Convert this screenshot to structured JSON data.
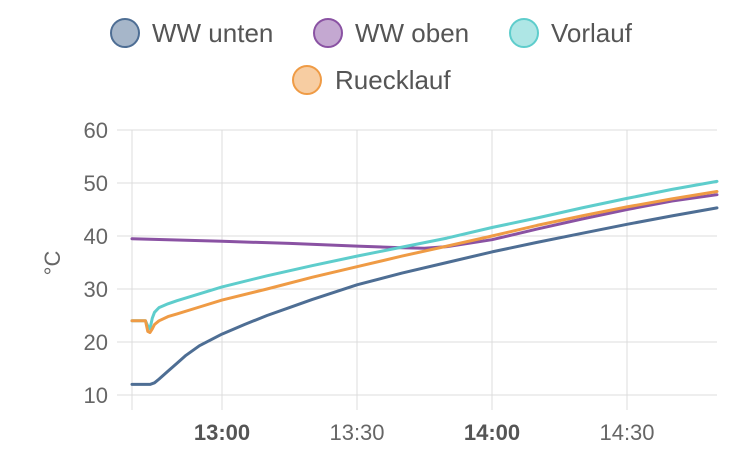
{
  "chart_data": {
    "type": "line",
    "ylabel": "°C",
    "ylim": [
      10,
      60
    ],
    "yticks": [
      10,
      20,
      30,
      40,
      50,
      60
    ],
    "xticks": [
      {
        "t": "13:00",
        "label": "13:00",
        "bold": true
      },
      {
        "t": "13:30",
        "label": "13:30",
        "bold": false
      },
      {
        "t": "14:00",
        "label": "14:00",
        "bold": true
      },
      {
        "t": "14:30",
        "label": "14:30",
        "bold": false
      }
    ],
    "xlim": [
      "12:40",
      "14:50"
    ],
    "grid": true,
    "legend_position": "top",
    "series": [
      {
        "name": "WW unten",
        "color": "#4e6e94",
        "points": [
          [
            "12:40",
            12.0
          ],
          [
            "12:44",
            12.0
          ],
          [
            "12:45",
            12.3
          ],
          [
            "12:46",
            13.0
          ],
          [
            "12:48",
            14.5
          ],
          [
            "12:50",
            16.0
          ],
          [
            "12:52",
            17.5
          ],
          [
            "12:55",
            19.3
          ],
          [
            "13:00",
            21.5
          ],
          [
            "13:05",
            23.3
          ],
          [
            "13:10",
            25.0
          ],
          [
            "13:15",
            26.5
          ],
          [
            "13:20",
            28.0
          ],
          [
            "13:30",
            30.8
          ],
          [
            "13:40",
            33.0
          ],
          [
            "13:50",
            35.0
          ],
          [
            "14:00",
            37.0
          ],
          [
            "14:10",
            38.8
          ],
          [
            "14:20",
            40.5
          ],
          [
            "14:30",
            42.2
          ],
          [
            "14:40",
            43.8
          ],
          [
            "14:50",
            45.3
          ]
        ]
      },
      {
        "name": "WW oben",
        "color": "#8a52a3",
        "points": [
          [
            "12:40",
            39.5
          ],
          [
            "13:00",
            39.0
          ],
          [
            "13:15",
            38.6
          ],
          [
            "13:30",
            38.1
          ],
          [
            "13:40",
            37.8
          ],
          [
            "13:45",
            37.7
          ],
          [
            "13:50",
            38.0
          ],
          [
            "14:00",
            39.3
          ],
          [
            "14:10",
            41.3
          ],
          [
            "14:20",
            43.2
          ],
          [
            "14:30",
            45.0
          ],
          [
            "14:40",
            46.6
          ],
          [
            "14:50",
            47.8
          ]
        ]
      },
      {
        "name": "Vorlauf",
        "color": "#5ecdcc",
        "points": [
          [
            "12:40",
            24.0
          ],
          [
            "12:43",
            24.0
          ],
          [
            "12:43.5",
            23.0
          ],
          [
            "12:44",
            22.5
          ],
          [
            "12:44.5",
            24.5
          ],
          [
            "12:45",
            25.6
          ],
          [
            "12:46",
            26.5
          ],
          [
            "12:48",
            27.2
          ],
          [
            "12:50",
            27.8
          ],
          [
            "12:55",
            29.1
          ],
          [
            "13:00",
            30.4
          ],
          [
            "13:10",
            32.5
          ],
          [
            "13:20",
            34.4
          ],
          [
            "13:30",
            36.2
          ],
          [
            "13:40",
            37.9
          ],
          [
            "13:50",
            39.6
          ],
          [
            "14:00",
            41.6
          ],
          [
            "14:10",
            43.4
          ],
          [
            "14:20",
            45.3
          ],
          [
            "14:30",
            47.1
          ],
          [
            "14:40",
            48.8
          ],
          [
            "14:50",
            50.3
          ]
        ]
      },
      {
        "name": "Ruecklauf",
        "color": "#ef9b45",
        "points": [
          [
            "12:40",
            24.0
          ],
          [
            "12:43",
            24.0
          ],
          [
            "12:43.5",
            22.0
          ],
          [
            "12:44",
            21.8
          ],
          [
            "12:44.5",
            22.5
          ],
          [
            "12:45",
            23.3
          ],
          [
            "12:46",
            24.0
          ],
          [
            "12:48",
            24.8
          ],
          [
            "12:50",
            25.3
          ],
          [
            "12:55",
            26.6
          ],
          [
            "13:00",
            27.9
          ],
          [
            "13:10",
            30.0
          ],
          [
            "13:20",
            32.2
          ],
          [
            "13:30",
            34.2
          ],
          [
            "13:40",
            36.2
          ],
          [
            "13:50",
            38.1
          ],
          [
            "14:00",
            40.0
          ],
          [
            "14:10",
            42.0
          ],
          [
            "14:20",
            43.8
          ],
          [
            "14:30",
            45.5
          ],
          [
            "14:40",
            47.0
          ],
          [
            "14:50",
            48.4
          ]
        ]
      }
    ]
  }
}
